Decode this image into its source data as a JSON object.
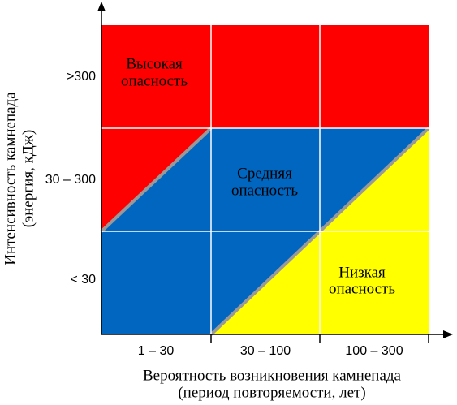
{
  "y_axis": {
    "title_lines": [
      "Интенсивность камнепада",
      "(энергия, кДж)"
    ],
    "categories": [
      ">300",
      "30 – 300",
      "< 30"
    ]
  },
  "x_axis": {
    "title_lines": [
      "Вероятность возникновения камнепада",
      "(период повторяемости, лет)"
    ],
    "categories": [
      "1 – 30",
      "30 – 100",
      "100 – 300"
    ]
  },
  "zones": [
    {
      "lines": [
        "Высокая",
        "опасность"
      ]
    },
    {
      "lines": [
        "Средняя",
        "опасность"
      ]
    },
    {
      "lines": [
        "Низкая",
        "опасность"
      ]
    }
  ]
}
